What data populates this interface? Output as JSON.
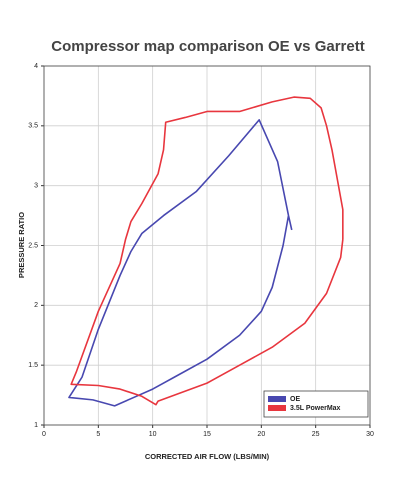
{
  "chart_data": {
    "type": "line",
    "title": "Compressor map comparison OE vs Garrett",
    "x_label": "CORRECTED AIR FLOW (LBS/MIN)",
    "y_label": "PRESSURE RATIO",
    "xlim": [
      0,
      30
    ],
    "ylim": [
      1,
      4
    ],
    "xticks": [
      0,
      5,
      10,
      15,
      20,
      25,
      30
    ],
    "yticks": [
      1,
      1.5,
      2,
      2.5,
      3,
      3.5,
      4
    ],
    "grid": true,
    "legend": "lower right",
    "series": [
      {
        "name": "OE",
        "color": "#4848b0",
        "x": [
          22.8,
          22.5,
          21.5,
          19.8,
          17,
          14,
          11,
          9,
          8,
          7,
          5,
          3.5,
          2.3,
          4.5,
          6.5,
          8,
          10,
          12,
          15,
          18,
          20,
          21,
          22,
          22.5
        ],
        "values": [
          2.63,
          2.75,
          3.2,
          3.55,
          3.25,
          2.95,
          2.75,
          2.6,
          2.45,
          2.25,
          1.8,
          1.4,
          1.23,
          1.21,
          1.16,
          1.22,
          1.3,
          1.4,
          1.55,
          1.75,
          1.95,
          2.15,
          2.5,
          2.75
        ]
      },
      {
        "name": "3.5L PowerMax",
        "color": "#e8363e",
        "x": [
          27.5,
          27.5,
          26.5,
          26,
          25.5,
          24.5,
          23,
          21,
          18,
          15,
          13,
          11.2,
          11,
          10.5,
          9,
          8,
          7.5,
          7,
          5,
          3,
          2.5,
          5,
          7,
          9,
          10.3,
          10.5,
          12,
          15,
          18,
          21,
          24,
          26,
          27.3,
          27.5
        ],
        "values": [
          2.55,
          2.8,
          3.3,
          3.5,
          3.65,
          3.73,
          3.74,
          3.7,
          3.62,
          3.62,
          3.57,
          3.53,
          3.3,
          3.1,
          2.85,
          2.7,
          2.55,
          2.35,
          1.95,
          1.45,
          1.34,
          1.33,
          1.3,
          1.24,
          1.17,
          1.2,
          1.25,
          1.35,
          1.5,
          1.65,
          1.85,
          2.1,
          2.4,
          2.55
        ]
      }
    ]
  }
}
